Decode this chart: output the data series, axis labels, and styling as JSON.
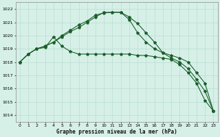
{
  "xlabel": "Graphe pression niveau de la mer (hPa)",
  "bg_color": "#d6f0e8",
  "grid_color": "#b8ddd0",
  "line_color": "#1a5e2a",
  "xlim": [
    -0.5,
    23.5
  ],
  "ylim": [
    1013.5,
    1022.5
  ],
  "xticks": [
    0,
    1,
    2,
    3,
    4,
    5,
    6,
    7,
    8,
    9,
    10,
    11,
    12,
    13,
    14,
    15,
    16,
    17,
    18,
    19,
    20,
    21,
    22,
    23
  ],
  "yticks": [
    1014,
    1015,
    1016,
    1017,
    1018,
    1019,
    1020,
    1021,
    1022
  ],
  "series": [
    [
      1018.0,
      1018.6,
      1019.0,
      1019.1,
      1019.9,
      1019.2,
      1018.8,
      1018.6,
      1018.6,
      1018.6,
      1018.6,
      1018.6,
      1018.6,
      1018.6,
      1018.5,
      1018.5,
      1018.4,
      1018.3,
      1018.2,
      1017.8,
      1017.2,
      1016.4,
      1015.1,
      1014.3
    ],
    [
      1018.0,
      1018.6,
      1019.0,
      1019.2,
      1019.5,
      1019.9,
      1020.3,
      1020.6,
      1021.0,
      1021.4,
      1021.75,
      1021.75,
      1021.75,
      1021.4,
      1020.9,
      1020.2,
      1019.5,
      1018.7,
      1018.3,
      1018.0,
      1017.5,
      1016.7,
      1015.8,
      1014.3
    ],
    [
      1018.0,
      1018.6,
      1019.0,
      1019.2,
      1019.5,
      1020.0,
      1020.4,
      1020.8,
      1021.1,
      1021.55,
      1021.7,
      1021.75,
      1021.75,
      1021.2,
      1020.2,
      1019.5,
      1019.0,
      1018.7,
      1018.5,
      1018.3,
      1018.0,
      1017.2,
      1016.4,
      1014.3
    ]
  ],
  "marker": "*",
  "markersize": 3.0,
  "linewidth": 0.8
}
